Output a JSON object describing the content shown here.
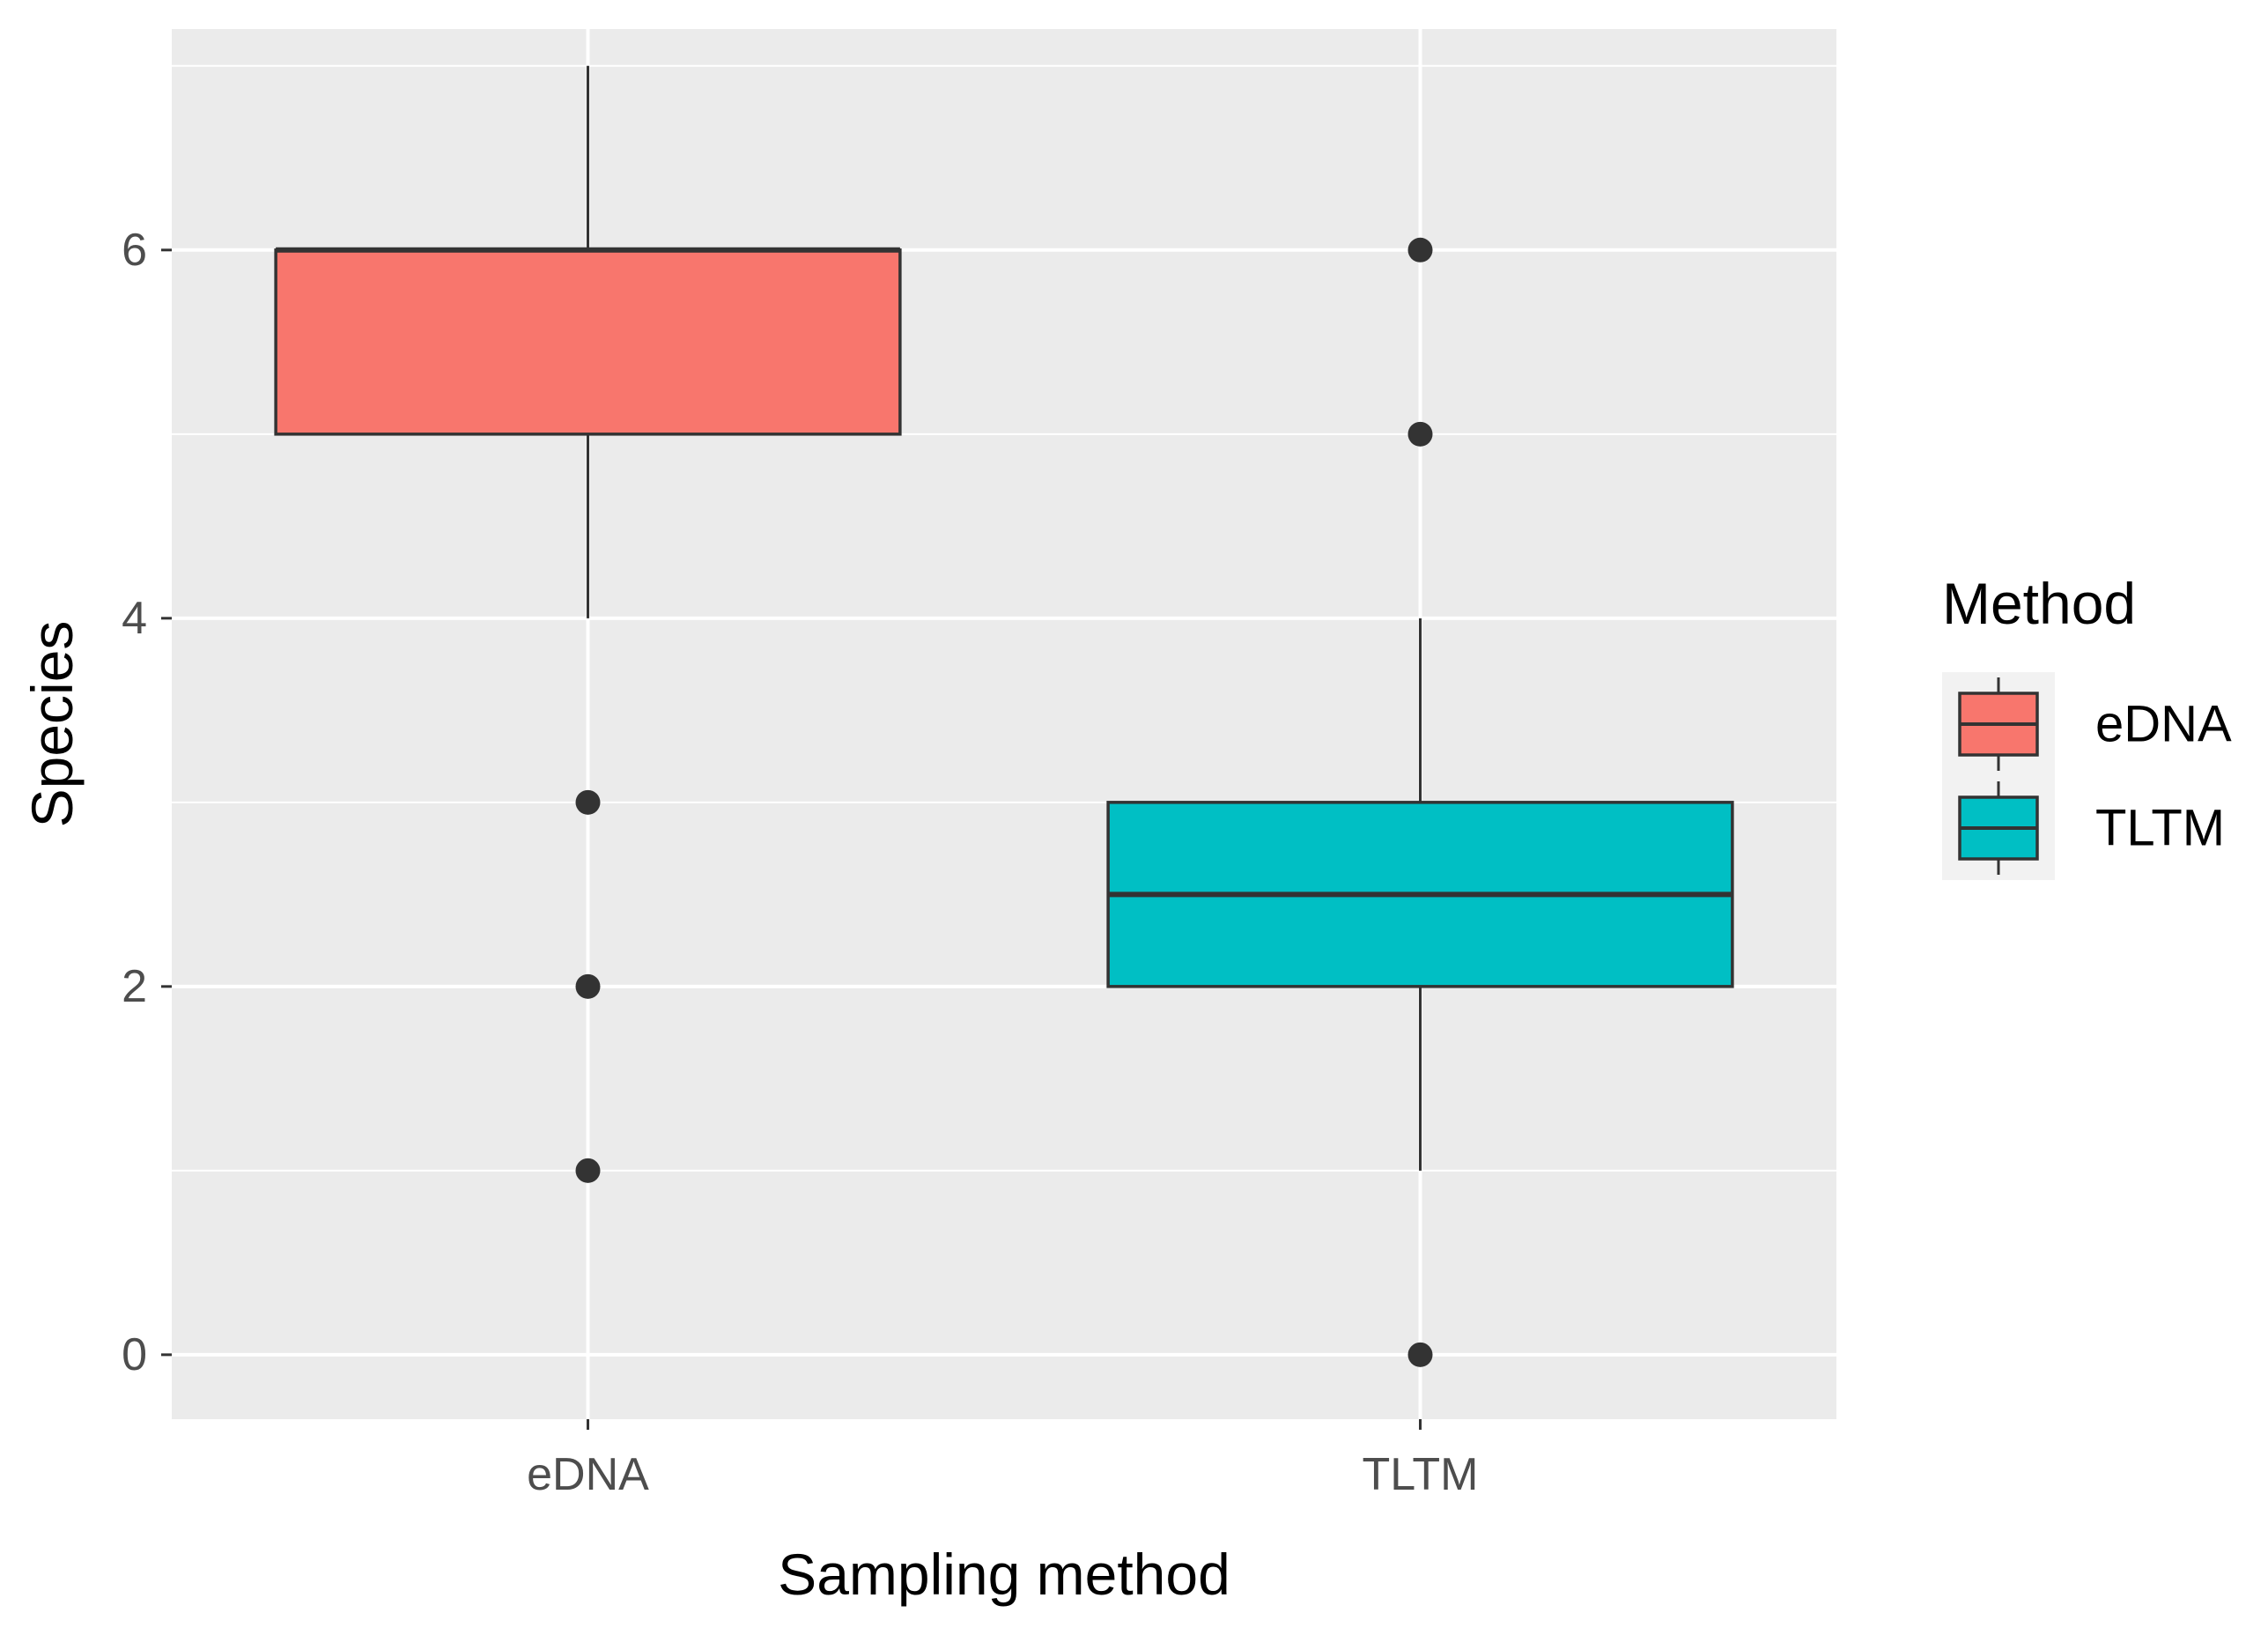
{
  "chart_data": {
    "type": "boxplot",
    "title": "",
    "xlabel": "Sampling method",
    "ylabel": "Species",
    "categories": [
      "eDNA",
      "TLTM"
    ],
    "ylim": [
      -0.35,
      7.2
    ],
    "yticks": [
      0,
      2,
      4,
      6
    ],
    "ytick_labels": [
      "0",
      "2",
      "4",
      "6"
    ],
    "grid": true,
    "legend": {
      "title": "Method",
      "position": "right",
      "entries": [
        "eDNA",
        "TLTM"
      ]
    },
    "series": [
      {
        "name": "eDNA",
        "color": "#F8766D",
        "whisker_low": 4,
        "q1": 5,
        "median": 6,
        "q3": 6,
        "whisker_high": 7,
        "outliers": [
          3,
          2,
          1
        ]
      },
      {
        "name": "TLTM",
        "color": "#00BFC4",
        "whisker_low": 1,
        "q1": 2,
        "median": 2.5,
        "q3": 3,
        "whisker_high": 4,
        "outliers": [
          6,
          5,
          0
        ]
      }
    ]
  },
  "colors": {
    "panel_background": "#EBEBEB",
    "grid_major": "#FFFFFF",
    "axis_text": "#4D4D4D",
    "outline": "#333333",
    "text": "#000000"
  }
}
